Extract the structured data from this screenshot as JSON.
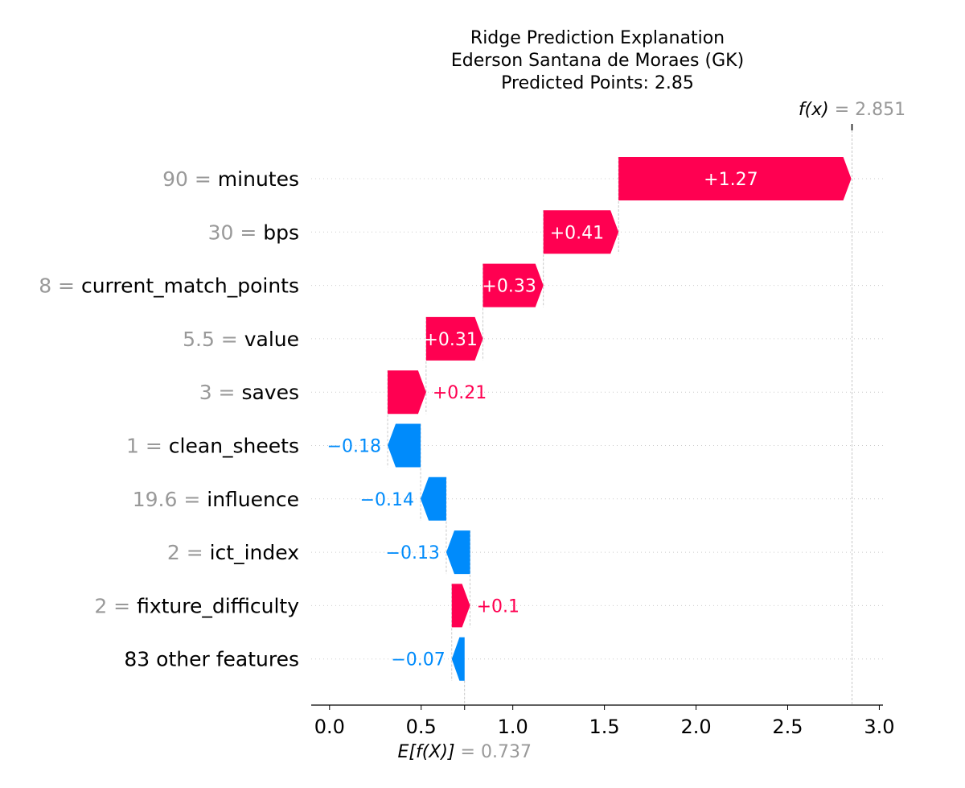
{
  "chart_data": {
    "type": "waterfall",
    "title_lines": [
      "Ridge Prediction Explanation",
      "Ederson Santana de Moraes (GK)",
      "Predicted Points: 2.85"
    ],
    "base_value": 0.737,
    "base_value_label": "0.737",
    "base_value_prefix": "E[f(X)]",
    "output_value": 2.851,
    "output_value_label": "2.851",
    "output_value_prefix": "f(x)",
    "xlim": [
      -0.1,
      3.02
    ],
    "xticks": [
      0.0,
      0.5,
      1.0,
      1.5,
      2.0,
      2.5,
      3.0
    ],
    "xtick_labels": [
      "0.0",
      "0.5",
      "1.0",
      "1.5",
      "2.0",
      "2.5",
      "3.0"
    ],
    "features": [
      {
        "value": "90",
        "name": "minutes",
        "contribution": 1.27,
        "label": "+1.27"
      },
      {
        "value": "30",
        "name": "bps",
        "contribution": 0.41,
        "label": "+0.41"
      },
      {
        "value": "8",
        "name": "current_match_points",
        "contribution": 0.33,
        "label": "+0.33"
      },
      {
        "value": "5.5",
        "name": "value",
        "contribution": 0.31,
        "label": "+0.31"
      },
      {
        "value": "3",
        "name": "saves",
        "contribution": 0.21,
        "label": "+0.21"
      },
      {
        "value": "1",
        "name": "clean_sheets",
        "contribution": -0.18,
        "label": "−0.18"
      },
      {
        "value": "19.6",
        "name": "influence",
        "contribution": -0.14,
        "label": "−0.14"
      },
      {
        "value": "2",
        "name": "ict_index",
        "contribution": -0.13,
        "label": "−0.13"
      },
      {
        "value": "2",
        "name": "fixture_difficulty",
        "contribution": 0.1,
        "label": "+0.1"
      },
      {
        "value": "",
        "name": "83 other features",
        "contribution": -0.07,
        "label": "−0.07"
      }
    ],
    "colors": {
      "positive": "#ff0051",
      "negative": "#008bfb",
      "feature_value": "#999999",
      "feature_name": "#000000",
      "guide": "#bbbbbb",
      "grid": "#cccccc"
    }
  }
}
